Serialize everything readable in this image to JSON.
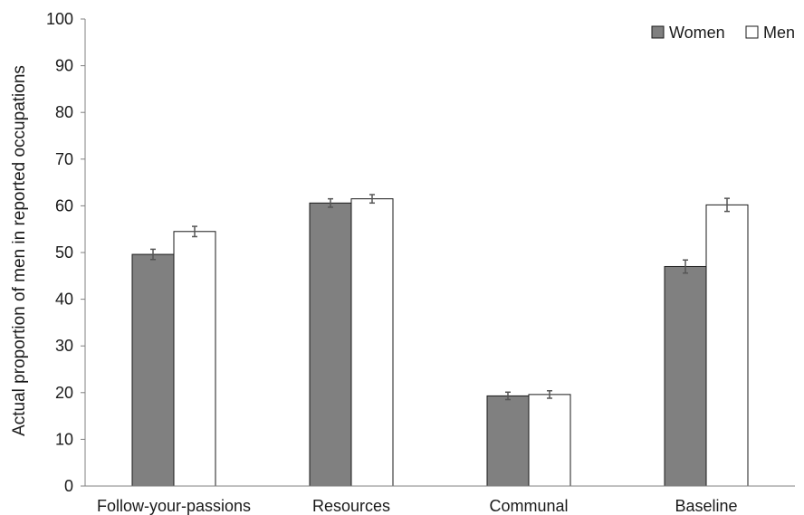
{
  "chart_data": {
    "type": "bar",
    "title": "",
    "xlabel": "",
    "ylabel": "Actual proportion of men in reported occupations",
    "ylim": [
      0,
      100
    ],
    "yticks": [
      0,
      10,
      20,
      30,
      40,
      50,
      60,
      70,
      80,
      90,
      100
    ],
    "grid": false,
    "legend": "top-right",
    "categories": [
      "Follow-your-passions",
      "Resources",
      "Communal",
      "Baseline"
    ],
    "series": [
      {
        "name": "Women",
        "color": "#808080",
        "values": [
          49.6,
          60.6,
          19.3,
          47.0
        ],
        "error": [
          1.1,
          0.9,
          0.8,
          1.4
        ]
      },
      {
        "name": "Men",
        "color": "#ffffff",
        "values": [
          54.5,
          61.5,
          19.6,
          60.2
        ],
        "error": [
          1.1,
          0.9,
          0.8,
          1.4
        ]
      }
    ]
  }
}
